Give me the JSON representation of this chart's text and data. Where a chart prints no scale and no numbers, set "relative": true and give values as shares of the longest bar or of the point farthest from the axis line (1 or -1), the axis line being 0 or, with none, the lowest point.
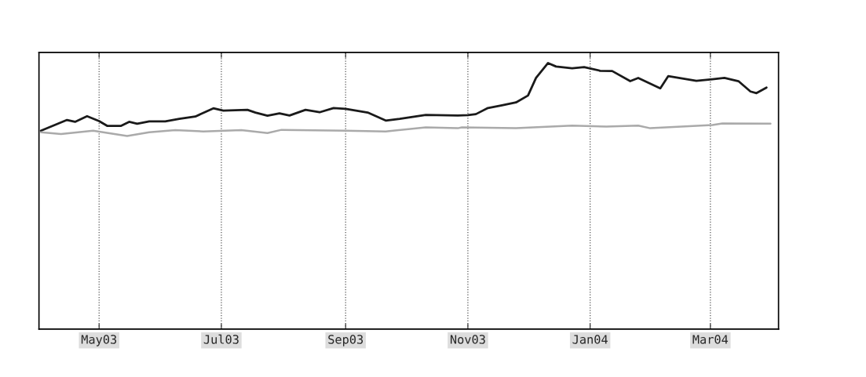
{
  "chart_data": {
    "type": "line",
    "relative": true,
    "grid": "x",
    "xlim": [
      "2003-04-01",
      "2004-04-04"
    ],
    "xticks": [
      {
        "value": "2003-05-01",
        "label": "May03"
      },
      {
        "value": "2003-07-01",
        "label": "Jul03"
      },
      {
        "value": "2003-09-01",
        "label": "Sep03"
      },
      {
        "value": "2003-11-01",
        "label": "Nov03"
      },
      {
        "value": "2004-01-01",
        "label": "Jan04"
      },
      {
        "value": "2004-03-01",
        "label": "Mar04"
      }
    ],
    "series": [
      {
        "color": "#1a1a1a",
        "x": [
          "2003-04-02",
          "2003-04-15",
          "2003-04-19",
          "2003-04-25",
          "2003-05-01",
          "2003-05-05",
          "2003-05-12",
          "2003-05-16",
          "2003-05-20",
          "2003-05-26",
          "2003-06-03",
          "2003-06-10",
          "2003-06-18",
          "2003-06-27",
          "2003-07-02",
          "2003-07-14",
          "2003-07-18",
          "2003-07-24",
          "2003-07-30",
          "2003-08-04",
          "2003-08-12",
          "2003-08-19",
          "2003-08-26",
          "2003-09-01",
          "2003-09-12",
          "2003-09-21",
          "2003-09-28",
          "2003-10-11",
          "2003-10-27",
          "2003-11-01",
          "2003-11-05",
          "2003-11-11",
          "2003-11-18",
          "2003-11-25",
          "2003-12-01",
          "2003-12-05",
          "2003-12-11",
          "2003-12-15",
          "2003-12-23",
          "2003-12-29",
          "2004-01-06",
          "2004-01-12",
          "2004-01-21",
          "2004-01-25",
          "2004-02-05",
          "2004-02-09",
          "2004-02-16",
          "2004-02-23",
          "2004-03-02",
          "2004-03-08",
          "2004-03-15",
          "2004-03-21",
          "2004-03-24",
          "2004-03-29"
        ],
        "values": [
          0.746,
          0.786,
          0.779,
          0.8,
          0.782,
          0.764,
          0.764,
          0.779,
          0.772,
          0.781,
          0.781,
          0.79,
          0.799,
          0.83,
          0.821,
          0.824,
          0.814,
          0.802,
          0.811,
          0.803,
          0.824,
          0.815,
          0.831,
          0.828,
          0.814,
          0.784,
          0.79,
          0.805,
          0.803,
          0.804,
          0.808,
          0.831,
          0.841,
          0.852,
          0.878,
          0.944,
          1,
          0.987,
          0.98,
          0.985,
          0.971,
          0.97,
          0.932,
          0.944,
          0.905,
          0.951,
          0.942,
          0.933,
          0.939,
          0.944,
          0.932,
          0.893,
          0.887,
          0.908
        ]
      },
      {
        "color": "#aaaaaa",
        "x": [
          "2003-04-02",
          "2003-04-12",
          "2003-04-28",
          "2003-05-15",
          "2003-05-26",
          "2003-06-08",
          "2003-06-22",
          "2003-07-11",
          "2003-07-24",
          "2003-07-31",
          "2003-09-01",
          "2003-09-21",
          "2003-10-11",
          "2003-10-27",
          "2003-10-29",
          "2003-11-25",
          "2003-12-23",
          "2004-01-09",
          "2004-01-25",
          "2004-01-31",
          "2004-03-02",
          "2004-03-07",
          "2004-03-31"
        ],
        "values": [
          0.74,
          0.733,
          0.746,
          0.726,
          0.74,
          0.748,
          0.743,
          0.748,
          0.737,
          0.749,
          0.746,
          0.743,
          0.758,
          0.755,
          0.758,
          0.755,
          0.765,
          0.761,
          0.765,
          0.755,
          0.767,
          0.773,
          0.772
        ]
      }
    ]
  }
}
